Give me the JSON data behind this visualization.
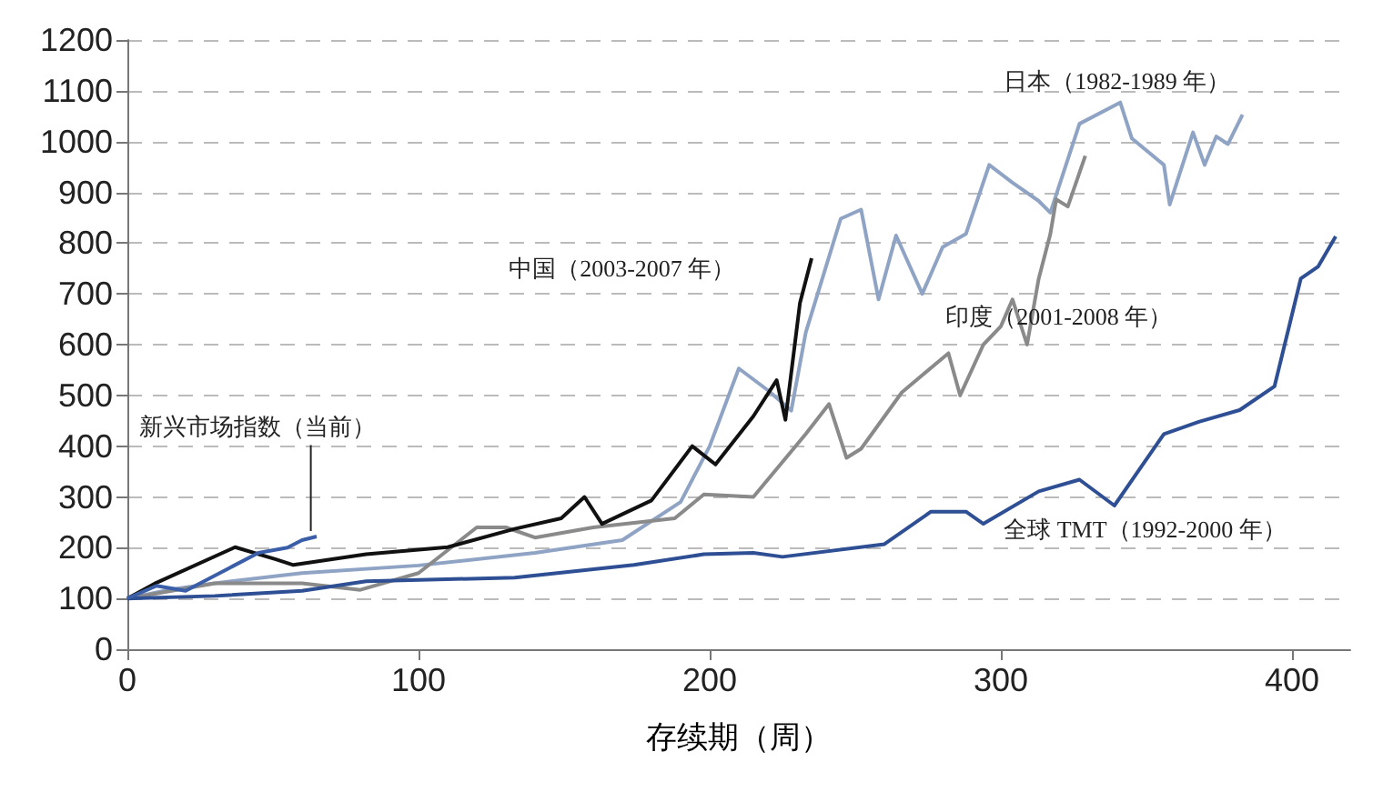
{
  "chart_data": {
    "type": "line",
    "xlabel": "存续期（周）",
    "xlim": [
      0,
      420
    ],
    "xticks": [
      0,
      100,
      200,
      300,
      400
    ],
    "ylim": [
      0,
      1200
    ],
    "yticks": [
      0,
      100,
      200,
      300,
      400,
      500,
      600,
      700,
      800,
      900,
      1000,
      1100,
      1200
    ],
    "grid": "y",
    "legend": false,
    "marker": "none",
    "line_style": "solid",
    "series": [
      {
        "name": "日本（1982-1989 年）",
        "color": "#8fa3c4",
        "x": [
          0,
          15,
          30,
          60,
          100,
          140,
          170,
          190,
          200,
          210,
          220,
          228,
          233,
          245,
          252,
          258,
          264,
          273,
          280,
          288,
          296,
          304,
          313,
          317,
          327,
          341,
          345,
          356,
          358,
          366,
          370,
          374,
          378,
          383
        ],
        "values": [
          100,
          118,
          130,
          150,
          165,
          190,
          215,
          290,
          400,
          553,
          510,
          470,
          624,
          848,
          866,
          689,
          815,
          700,
          792,
          818,
          954,
          919,
          883,
          860,
          1035,
          1077,
          1006,
          954,
          876,
          1018,
          954,
          1010,
          995,
          1053
        ]
      },
      {
        "name": "印度（2001-2008 年）",
        "color": "#8a8a8a",
        "x": [
          0,
          30,
          60,
          80,
          100,
          120,
          130,
          140,
          160,
          188,
          198,
          215,
          233,
          241,
          247,
          252,
          266,
          282,
          286,
          294,
          300,
          304,
          309,
          313,
          317,
          319,
          323,
          329
        ],
        "values": [
          100,
          130,
          130,
          117,
          150,
          240,
          240,
          220,
          240,
          258,
          305,
          300,
          424,
          483,
          377,
          395,
          506,
          583,
          500,
          600,
          636,
          689,
          600,
          730,
          818,
          886,
          872,
          972
        ]
      },
      {
        "name": "全球 TMT（1992-2000 年）",
        "color": "#2e4f94",
        "x": [
          0,
          30,
          60,
          82,
          133,
          174,
          198,
          215,
          225,
          260,
          276,
          288,
          294,
          313,
          327,
          339,
          356,
          368,
          382,
          394,
          403,
          409,
          415
        ],
        "values": [
          100,
          105,
          115,
          134,
          141,
          166,
          187,
          190,
          182,
          207,
          271,
          271,
          247,
          311,
          334,
          283,
          424,
          448,
          471,
          518,
          730,
          754,
          813
        ]
      },
      {
        "name": "中国（2003-2007 年）",
        "color": "#111111",
        "x": [
          0,
          10,
          37,
          51,
          57,
          82,
          110,
          133,
          149,
          157,
          163,
          180,
          194,
          202,
          215,
          223,
          226,
          231,
          235
        ],
        "values": [
          100,
          131,
          201,
          177,
          166,
          187,
          201,
          237,
          258,
          300,
          247,
          293,
          400,
          364,
          459,
          530,
          452,
          682,
          770
        ]
      },
      {
        "name": "新兴市场指数（当前）",
        "color": "#3a5ea8",
        "x": [
          0,
          10,
          20,
          35,
          45,
          55,
          60,
          65
        ],
        "values": [
          100,
          125,
          115,
          160,
          190,
          200,
          215,
          222
        ]
      }
    ]
  }
}
